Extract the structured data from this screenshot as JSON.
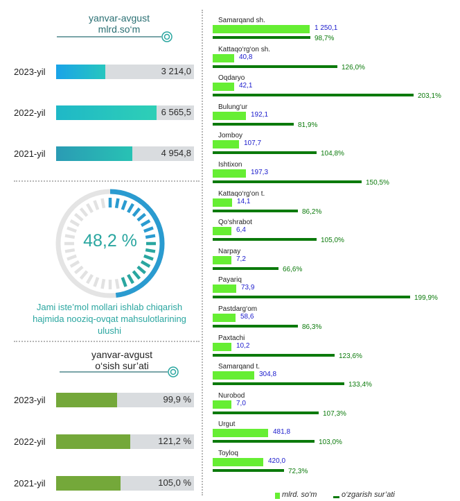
{
  "top_panel": {
    "title_line1": "yanvar-avgust",
    "title_line2": "mlrd.so‘m",
    "rows": [
      {
        "year": "2023-yil",
        "value_label": "3 214,0",
        "value": 3214.0
      },
      {
        "year": "2022-yil",
        "value_label": "6 565,5",
        "value": 6565.5
      },
      {
        "year": "2021-yil",
        "value_label": "4 954,8",
        "value": 4954.8
      }
    ]
  },
  "gauge": {
    "percent_label": "48,2 %",
    "percent": 48.2,
    "caption_line1": "Jami iste’mol mollari ishlab chiqarish",
    "caption_line2": "hajmida nooziq-ovqat mahsulotlarining",
    "caption_line3": "ulushi"
  },
  "bottom_panel": {
    "title_line1": "yanvar-avgust",
    "title_line2": "o‘sish sur’ati",
    "rows": [
      {
        "year": "2023-yil",
        "value_label": "99,9 %",
        "value": 99.9
      },
      {
        "year": "2022-yil",
        "value_label": "121,2 %",
        "value": 121.2
      },
      {
        "year": "2021-yil",
        "value_label": "105,0 %",
        "value": 105.0
      }
    ]
  },
  "legend": {
    "volume_label": "mlrd. so'm",
    "growth_label": "o‘zgarish sur’ati"
  },
  "colors": {
    "teal_title": "#2a6f73",
    "volume_green": "#66ee33",
    "growth_green": "#0b7a0b",
    "volume_value_text": "#1a1acc"
  },
  "chart_data": {
    "type": "bar",
    "categories": [
      "Samarqand sh.",
      "Kattaqo‘rg‘on sh.",
      "Oqdaryo",
      "Bulung‘ur",
      "Jomboy",
      "Ishtixon",
      "Kattaqo‘rg‘on t.",
      "Qo‘shrabot",
      "Narpay",
      "Payariq",
      "Pastdarg‘om",
      "Paxtachi",
      "Samarqand t.",
      "Nurobod",
      "Urgut",
      "Toyloq"
    ],
    "volume_labels": [
      "1 250,1",
      "40,8",
      "42,1",
      "192,1",
      "107,7",
      "197,3",
      "14,1",
      "6,4",
      "7,2",
      "73,9",
      "58,6",
      "10,2",
      "304,8",
      "7,0",
      "481,8",
      "420,0"
    ],
    "growth_labels": [
      "98,7%",
      "126,0%",
      "203,1%",
      "81,9%",
      "104,8%",
      "150,5%",
      "86,2%",
      "105,0%",
      "66,6%",
      "199,9%",
      "86,3%",
      "123,6%",
      "133,4%",
      "107,3%",
      "103,0%",
      "72,3%"
    ],
    "series": [
      {
        "name": "mlrd. so'm",
        "values": [
          1250.1,
          40.8,
          42.1,
          192.1,
          107.7,
          197.3,
          14.1,
          6.4,
          7.2,
          73.9,
          58.6,
          10.2,
          304.8,
          7.0,
          481.8,
          420.0
        ]
      },
      {
        "name": "o‘zgarish sur’ati",
        "values": [
          98.7,
          126.0,
          203.1,
          81.9,
          104.8,
          150.5,
          86.2,
          105.0,
          66.6,
          199.9,
          86.3,
          123.6,
          133.4,
          107.3,
          103.0,
          72.3
        ]
      }
    ]
  }
}
